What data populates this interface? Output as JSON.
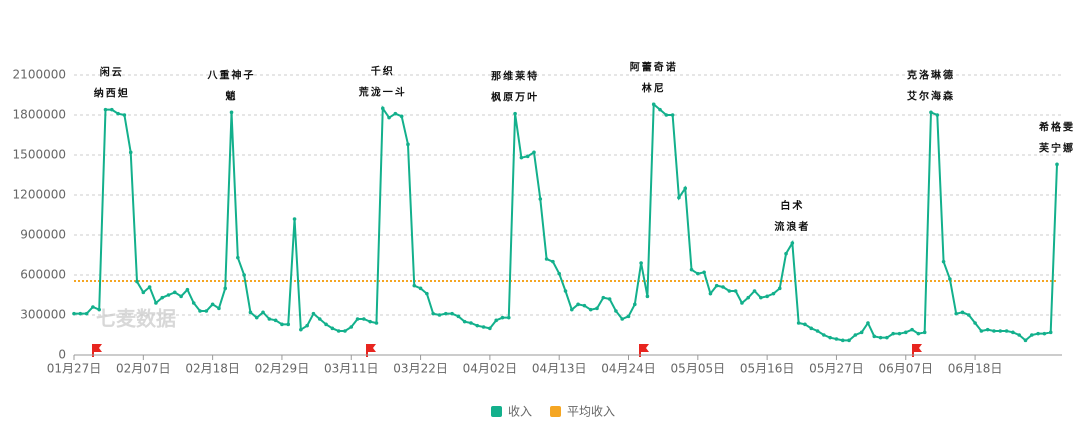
{
  "chart_data": {
    "type": "line",
    "categories": [
      "01月27日",
      null,
      null,
      null,
      null,
      null,
      null,
      null,
      null,
      null,
      null,
      "02月07日",
      null,
      null,
      null,
      null,
      null,
      null,
      null,
      null,
      null,
      null,
      "02月18日",
      null,
      null,
      null,
      null,
      null,
      null,
      null,
      null,
      null,
      null,
      "02月29日",
      null,
      null,
      null,
      null,
      null,
      null,
      null,
      null,
      null,
      null,
      "03月11日",
      null,
      null,
      null,
      null,
      null,
      null,
      null,
      null,
      null,
      null,
      "03月22日",
      null,
      null,
      null,
      null,
      null,
      null,
      null,
      null,
      null,
      null,
      "04月02日",
      null,
      null,
      null,
      null,
      null,
      null,
      null,
      null,
      null,
      null,
      "04月13日",
      null,
      null,
      null,
      null,
      null,
      null,
      null,
      null,
      null,
      null,
      "04月24日",
      null,
      null,
      null,
      null,
      null,
      null,
      null,
      null,
      null,
      null,
      "05月05日",
      null,
      null,
      null,
      null,
      null,
      null,
      null,
      null,
      null,
      null,
      "05月16日",
      null,
      null,
      null,
      null,
      null,
      null,
      null,
      null,
      null,
      null,
      "05月27日",
      null,
      null,
      null,
      null,
      null,
      null,
      null,
      null,
      null,
      null,
      "06月07日",
      null,
      null,
      null,
      null,
      null,
      null,
      null,
      null,
      null,
      null,
      "06月18日",
      null,
      null,
      null,
      null,
      null,
      null,
      null,
      null,
      null,
      null,
      null,
      null,
      null
    ],
    "series": [
      {
        "name": "收入",
        "color": "#13b08c",
        "values": [
          310000,
          310000,
          310000,
          360000,
          340000,
          1840000,
          1840000,
          1810000,
          1800000,
          1520000,
          550000,
          470000,
          510000,
          390000,
          430000,
          450000,
          470000,
          440000,
          490000,
          390000,
          330000,
          330000,
          380000,
          350000,
          500000,
          1820000,
          730000,
          600000,
          320000,
          280000,
          320000,
          270000,
          260000,
          230000,
          230000,
          1020000,
          190000,
          220000,
          310000,
          270000,
          230000,
          200000,
          180000,
          180000,
          210000,
          270000,
          270000,
          250000,
          240000,
          1850000,
          1780000,
          1810000,
          1790000,
          1580000,
          520000,
          500000,
          460000,
          310000,
          300000,
          310000,
          310000,
          290000,
          250000,
          240000,
          220000,
          210000,
          200000,
          260000,
          280000,
          280000,
          1810000,
          1480000,
          1490000,
          1520000,
          1170000,
          720000,
          700000,
          610000,
          480000,
          340000,
          380000,
          370000,
          340000,
          350000,
          430000,
          420000,
          330000,
          270000,
          290000,
          380000,
          690000,
          440000,
          1880000,
          1840000,
          1800000,
          1800000,
          1180000,
          1250000,
          640000,
          610000,
          620000,
          460000,
          520000,
          510000,
          480000,
          480000,
          390000,
          430000,
          480000,
          430000,
          440000,
          460000,
          500000,
          760000,
          840000,
          240000,
          230000,
          200000,
          180000,
          150000,
          130000,
          120000,
          110000,
          110000,
          150000,
          170000,
          240000,
          140000,
          130000,
          130000,
          160000,
          160000,
          170000,
          190000,
          160000,
          170000,
          1820000,
          1800000,
          700000,
          570000,
          310000,
          320000,
          300000,
          240000,
          180000,
          190000,
          180000,
          180000,
          180000,
          170000,
          150000,
          110000,
          150000,
          160000,
          160000,
          170000,
          1430000
        ]
      }
    ],
    "average": {
      "name": "平均收入",
      "color": "#f5a623",
      "value": 555000
    },
    "ylim": [
      0,
      2100000
    ],
    "yticks": [
      0,
      300000,
      600000,
      900000,
      1200000,
      1500000,
      1800000,
      2100000
    ],
    "grid": true,
    "legend": "bottom",
    "annotations": [
      {
        "point": 6,
        "lines": [
          "闲云",
          "纳西妲"
        ]
      },
      {
        "point": 25,
        "lines": [
          "八重神子",
          "魈"
        ]
      },
      {
        "point": 49,
        "lines": [
          "千织",
          "荒泷一斗"
        ]
      },
      {
        "point": 70,
        "lines": [
          "那维莱特",
          "枫原万叶"
        ]
      },
      {
        "point": 92,
        "lines": [
          "阿蕾奇诺",
          "林尼"
        ]
      },
      {
        "point": 114,
        "lines": [
          "白术",
          "流浪者"
        ]
      },
      {
        "point": 136,
        "lines": [
          "克洛琳德",
          "艾尔海森"
        ]
      },
      {
        "point": 156,
        "lines": [
          "希格雯",
          "芙宁娜"
        ]
      }
    ],
    "watermark": "七麦数据"
  }
}
